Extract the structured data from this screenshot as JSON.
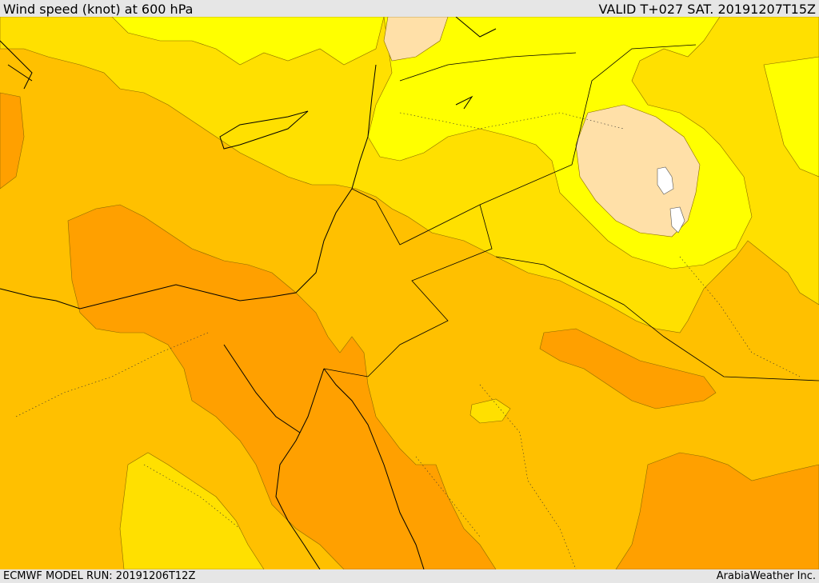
{
  "header": {
    "title": "Wind speed (knot) at 600 hPa",
    "valid": "VALID T+027 SAT. 20191207T15Z"
  },
  "footer": {
    "model_run": "ECMWF MODEL RUN: 20191206T12Z",
    "credit": "ArabiaWeather Inc."
  },
  "palette": {
    "very_light": "#ffe0a8",
    "light_yellow": "#ffff00",
    "yellow": "#ffe000",
    "amber": "#ffc000",
    "orange": "#ffa000"
  }
}
